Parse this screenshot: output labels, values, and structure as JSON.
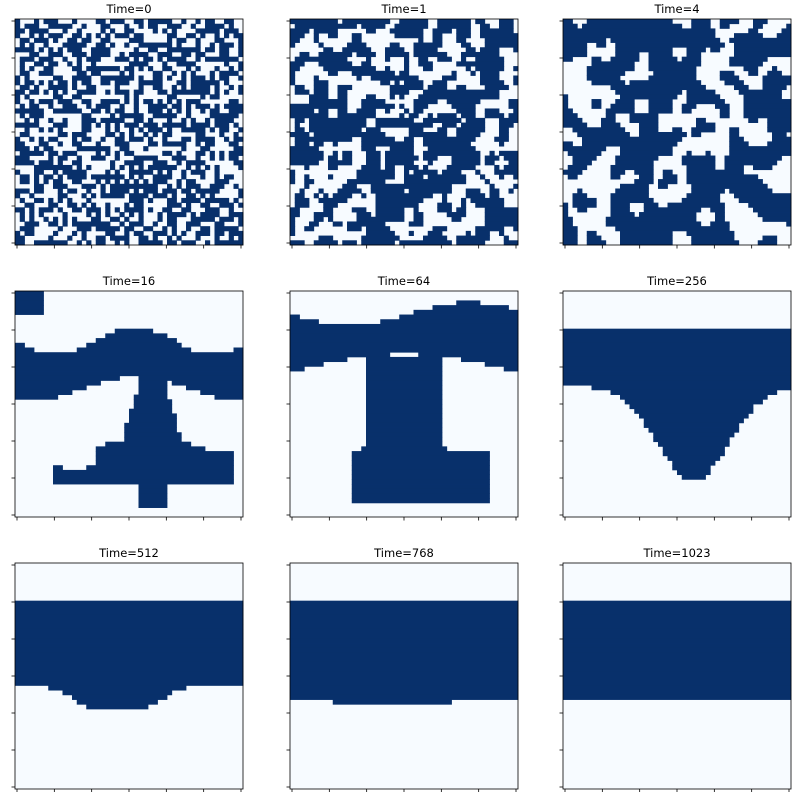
{
  "chart_data": {
    "type": "heatmap",
    "layout": "3x3 grid of binary lattice snapshots",
    "colormap": {
      "zero": "#f7fbff",
      "one": "#08306b"
    },
    "axis_tick_labels": "none",
    "panels": [
      {
        "title": "Time=0",
        "pattern": "random"
      },
      {
        "title": "Time=1",
        "pattern": "small-domains"
      },
      {
        "title": "Time=4",
        "pattern": "coarsening-domains"
      },
      {
        "title": "Time=16",
        "pattern": "branching-domain"
      },
      {
        "title": "Time=64",
        "pattern": "anvil-domain"
      },
      {
        "title": "Time=256",
        "pattern": "bowl-domain"
      },
      {
        "title": "Time=512",
        "pattern": "band-with-bulge",
        "band_rows_fraction": [
          0.17,
          0.55
        ]
      },
      {
        "title": "Time=768",
        "pattern": "band-with-slight-sag",
        "band_rows_fraction": [
          0.17,
          0.6
        ]
      },
      {
        "title": "Time=1023",
        "pattern": "flat-band",
        "band_rows_fraction": [
          0.17,
          0.61
        ]
      }
    ]
  }
}
